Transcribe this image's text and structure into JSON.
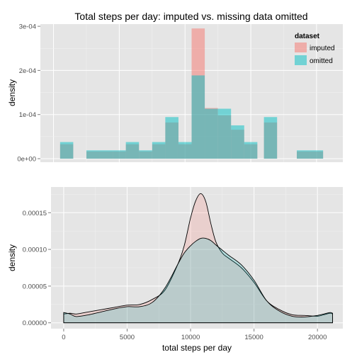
{
  "chart_data": [
    {
      "type": "bar",
      "title": "Total steps per day: imputed vs. missing data omitted",
      "ylabel": "density",
      "xlabel": "",
      "bin_width": 1000,
      "xlim": [
        -1000,
        22000
      ],
      "ylim": [
        -8e-06,
        0.000305
      ],
      "y_ticks": [
        {
          "value": 0,
          "label": "0e+00"
        },
        {
          "value": 0.0001,
          "label": "1e-04"
        },
        {
          "value": 0.0002,
          "label": "2e-04"
        },
        {
          "value": 0.0003,
          "label": "3e-04"
        }
      ],
      "series": [
        {
          "name": "imputed",
          "color": "#f8766d",
          "bins_start": [
            500,
            2500,
            3500,
            4500,
            5500,
            6500,
            7500,
            8500,
            9500,
            10500,
            11500,
            12500,
            13500,
            14500,
            16000,
            18500,
            19500
          ],
          "values": [
            3.28e-05,
            1.64e-05,
            1.64e-05,
            1.64e-05,
            3.28e-05,
            1.64e-05,
            3.28e-05,
            8.2e-05,
            3.28e-05,
            0.0002951,
            0.0001148,
            9.84e-05,
            6.56e-05,
            3.28e-05,
            8.2e-05,
            1.64e-05,
            1.64e-05
          ]
        },
        {
          "name": "omitted",
          "color": "#00bfc4",
          "bins_start": [
            500,
            2500,
            3500,
            4500,
            5500,
            6500,
            7500,
            8500,
            9500,
            10500,
            11500,
            12500,
            13500,
            14500,
            16000,
            18500,
            19500
          ],
          "values": [
            3.77e-05,
            1.89e-05,
            1.89e-05,
            1.89e-05,
            3.77e-05,
            1.89e-05,
            3.77e-05,
            9.43e-05,
            3.77e-05,
            0.0001887,
            0.0001132,
            0.0001132,
            7.55e-05,
            3.77e-05,
            9.43e-05,
            1.89e-05,
            1.89e-05
          ]
        }
      ],
      "legend": {
        "title": "dataset",
        "placement": "top-right",
        "entries": [
          {
            "label": "imputed",
            "color": "#f8766d"
          },
          {
            "label": "omitted",
            "color": "#00bfc4"
          }
        ]
      },
      "grid": true
    },
    {
      "type": "area",
      "title": "",
      "xlabel": "total steps per day",
      "ylabel": "density",
      "xlim": [
        -1000,
        22000
      ],
      "ylim": [
        -8e-06,
        0.000185
      ],
      "x_ticks": [
        {
          "value": 0,
          "label": "0"
        },
        {
          "value": 5000,
          "label": "5000"
        },
        {
          "value": 10000,
          "label": "10000"
        },
        {
          "value": 15000,
          "label": "15000"
        },
        {
          "value": 20000,
          "label": "20000"
        }
      ],
      "y_ticks": [
        {
          "value": 0,
          "label": "0.00000"
        },
        {
          "value": 5e-05,
          "label": "0.00005"
        },
        {
          "value": 0.0001,
          "label": "0.00010"
        },
        {
          "value": 0.00015,
          "label": "0.00015"
        }
      ],
      "series": [
        {
          "name": "imputed",
          "color": "#f8766d",
          "x": [
            0,
            500,
            1000,
            2000,
            3000,
            4000,
            5000,
            6000,
            7000,
            8000,
            9000,
            9500,
            10000,
            10400,
            10800,
            11200,
            11600,
            12000,
            12500,
            13000,
            14000,
            15000,
            16000,
            17000,
            18000,
            19000,
            20000,
            20500,
            21000,
            21194
          ],
          "values": [
            1.2e-05,
            1.3e-05,
            1.2e-05,
            1.5e-05,
            1.8e-05,
            2.1e-05,
            2.4e-05,
            2.5e-05,
            3.2e-05,
            4.5e-05,
            8e-05,
            0.000105,
            0.000143,
            0.000166,
            0.000176,
            0.000165,
            0.000135,
            0.00011,
            9.5e-05,
            8.8e-05,
            7.5e-05,
            5.5e-05,
            3e-05,
            1.8e-05,
            1.1e-05,
            1e-05,
            9e-06,
            1.1e-05,
            1.3e-05,
            1.2e-05
          ]
        },
        {
          "name": "omitted",
          "color": "#00bfc4",
          "x": [
            0,
            500,
            1000,
            2000,
            3000,
            4000,
            5000,
            6000,
            7000,
            8000,
            9000,
            9500,
            10000,
            10400,
            10800,
            11200,
            11600,
            12000,
            12500,
            13000,
            14000,
            15000,
            16000,
            17000,
            18000,
            19000,
            20000,
            20500,
            21000,
            21194
          ],
          "values": [
            1.4e-05,
            1.2e-05,
            8.5e-06,
            1.1e-05,
            1.5e-05,
            1.9e-05,
            2.2e-05,
            2.2e-05,
            2.8e-05,
            4.8e-05,
            8e-05,
            9.5e-05,
            0.000105,
            0.000111,
            0.000115,
            0.000115,
            0.000112,
            0.000106,
            9.9e-05,
            9.2e-05,
            7.9e-05,
            5.8e-05,
            3e-05,
            1.6e-05,
            9e-06,
            8e-06,
            1e-05,
            1.2e-05,
            1.4e-05,
            1.3e-05
          ]
        }
      ],
      "grid": true
    }
  ]
}
